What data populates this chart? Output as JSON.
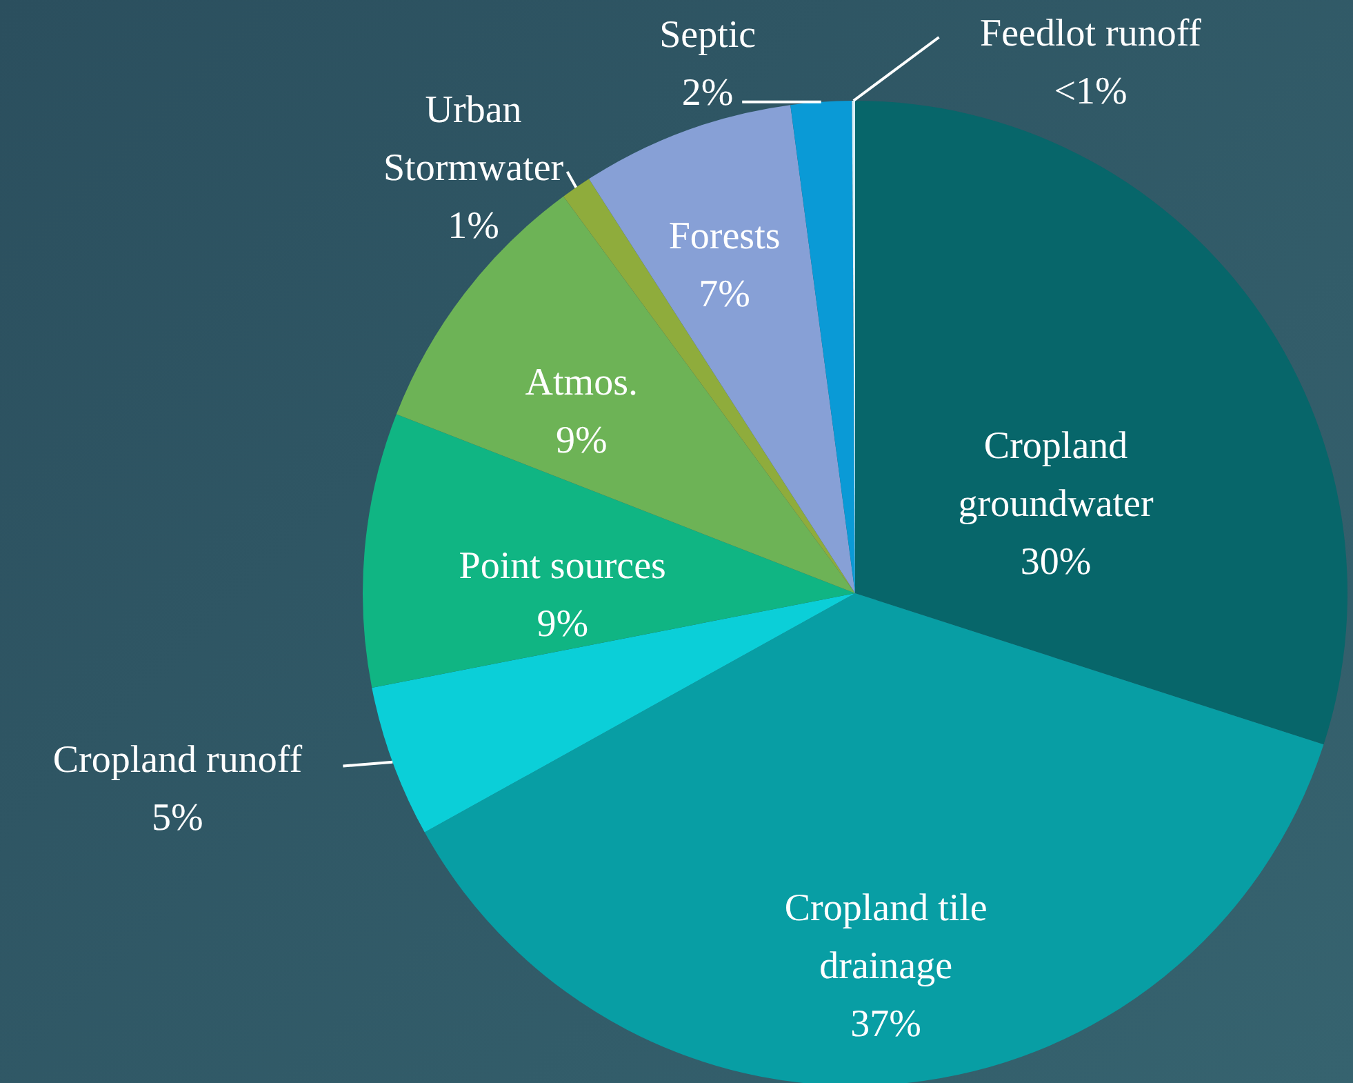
{
  "chart_data": {
    "type": "pie",
    "categories": [
      "Cropland groundwater",
      "Cropland tile drainage",
      "Cropland runoff",
      "Point sources",
      "Atmos.",
      "Urban Stormwater",
      "Forests",
      "Septic",
      "Feedlot runoff"
    ],
    "values": [
      30,
      37,
      5,
      9,
      9,
      1,
      7,
      2,
      0.1
    ],
    "value_labels": [
      "30%",
      "37%",
      "5%",
      "9%",
      "9%",
      "1%",
      "7%",
      "2%",
      "<1%"
    ],
    "colors": [
      "#07666a",
      "#089ea4",
      "#0bcfd8",
      "#10b583",
      "#6db356",
      "#8fac3c",
      "#87a0d6",
      "#0a9ad6",
      "#d8eef5"
    ]
  }
}
